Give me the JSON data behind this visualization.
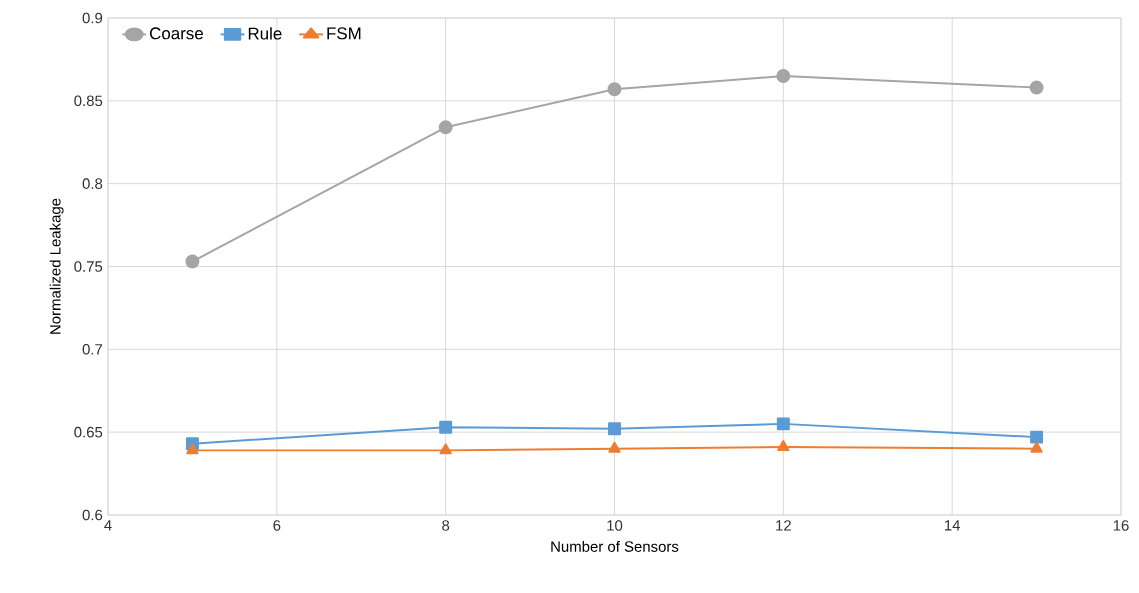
{
  "chart_data": {
    "type": "line",
    "xlabel": "Number of Sensors",
    "ylabel": "Normalized Leakage",
    "x": [
      5,
      8,
      10,
      12,
      15
    ],
    "series": [
      {
        "name": "Coarse",
        "color": "#a5a5a5",
        "marker": "circle",
        "values": [
          0.753,
          0.834,
          0.857,
          0.865,
          0.858
        ]
      },
      {
        "name": "Rule",
        "color": "#5b9bd5",
        "marker": "square",
        "values": [
          0.643,
          0.653,
          0.652,
          0.655,
          0.647
        ]
      },
      {
        "name": "FSM",
        "color": "#ed7d31",
        "marker": "triangle",
        "values": [
          0.639,
          0.639,
          0.64,
          0.641,
          0.64
        ]
      }
    ],
    "xlim": [
      4,
      16
    ],
    "xticks": [
      4,
      6,
      8,
      10,
      12,
      14,
      16
    ],
    "ylim": [
      0.6,
      0.9
    ],
    "yticks": [
      0.6,
      0.65,
      0.7,
      0.75,
      0.8,
      0.85,
      0.9
    ],
    "grid": true,
    "legend": "top left",
    "line_style": "solid"
  }
}
